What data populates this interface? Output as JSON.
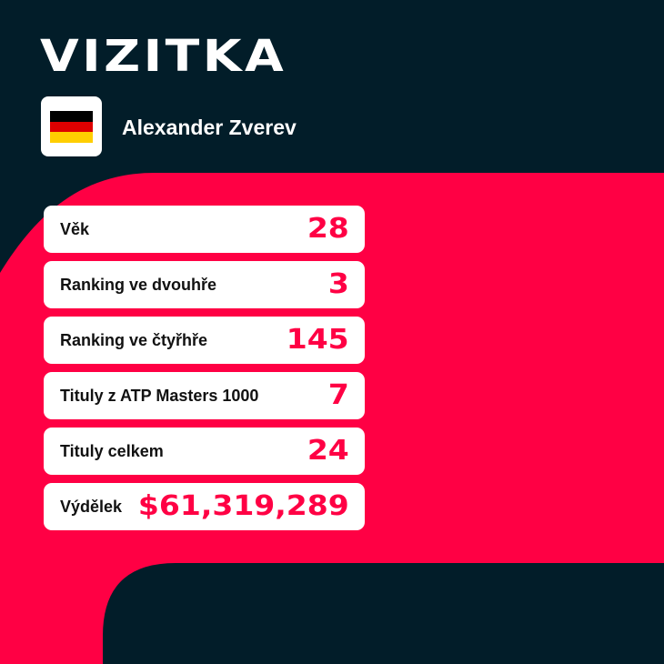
{
  "title": "VIZITKA",
  "player": {
    "name": "Alexander Zverev",
    "flag": "germany-flag",
    "flag_colors": [
      "#000000",
      "#dd0000",
      "#ffce00"
    ]
  },
  "colors": {
    "background": "#021d29",
    "accent": "#ff0044",
    "card": "#ffffff"
  },
  "stats": [
    {
      "label": "Věk",
      "value": "28"
    },
    {
      "label": "Ranking ve dvouhře",
      "value": "3"
    },
    {
      "label": "Ranking ve čtyřhře",
      "value": "145"
    },
    {
      "label": "Tituly z ATP Masters 1000",
      "value": "7"
    },
    {
      "label": "Tituly celkem",
      "value": "24"
    },
    {
      "label": "Výdělek",
      "value": "$61,319,289"
    }
  ]
}
